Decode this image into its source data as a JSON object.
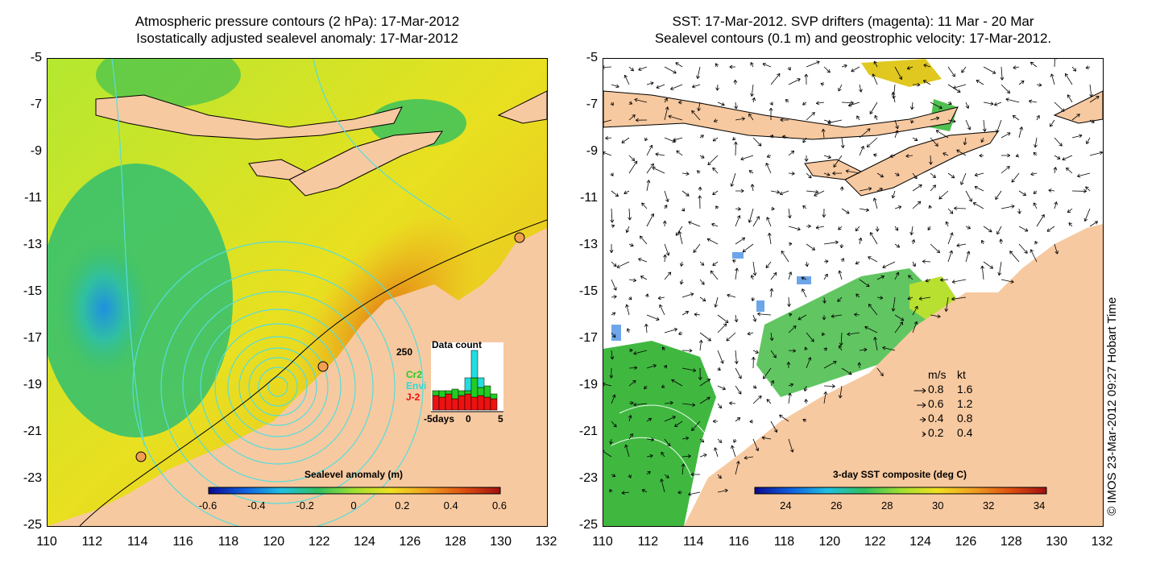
{
  "left_panel": {
    "title_line1": "Atmospheric pressure contours (2 hPa): 17-Mar-2012",
    "title_line2": "Isostatically adjusted sealevel anomaly: 17-Mar-2012",
    "colorbar": {
      "title": "Sealevel anomaly (m)",
      "ticks": [
        "-0.6",
        "-0.4",
        "-0.2",
        "0",
        "0.2",
        "0.4",
        "0.6"
      ],
      "min": -0.6,
      "max": 0.6
    },
    "data_count": {
      "title": "Data count",
      "ymax_label": "250",
      "xlabel_left": "-5days",
      "xlabel_mid": "0",
      "xlabel_right": "5",
      "series": [
        {
          "name": "Cr2",
          "color": "#22cc22"
        },
        {
          "name": "Envi",
          "color": "#22dddd"
        },
        {
          "name": "J-2",
          "color": "#ee1111"
        }
      ]
    }
  },
  "right_panel": {
    "title_line1": "SST: 17-Mar-2012. SVP drifters (magenta): 11 Mar - 20 Mar",
    "title_line2": "Sealevel contours (0.1 m) and geostrophic velocity: 17-Mar-2012.",
    "colorbar": {
      "title": "3-day SST composite (deg C)",
      "ticks": [
        "24",
        "26",
        "28",
        "30",
        "32",
        "34"
      ],
      "min": 22.75,
      "max": 34.25
    },
    "speed_legend": {
      "header_ms": "m/s",
      "header_kt": "kt",
      "rows": [
        {
          "ms": "0.8",
          "kt": "1.6"
        },
        {
          "ms": "0.6",
          "kt": "1.2"
        },
        {
          "ms": "0.4",
          "kt": "0.8"
        },
        {
          "ms": "0.2",
          "kt": "0.4"
        }
      ]
    }
  },
  "axes": {
    "y_ticks": [
      "-5",
      "-7",
      "-9",
      "-11",
      "-13",
      "-15",
      "-17",
      "-19",
      "-21",
      "-23",
      "-25"
    ],
    "x_ticks": [
      "110",
      "112",
      "114",
      "116",
      "118",
      "120",
      "122",
      "124",
      "126",
      "128",
      "130",
      "132"
    ],
    "lon_range": [
      110,
      132
    ],
    "lat_range": [
      -25,
      -5
    ]
  },
  "credit": "© IMOS 23-Mar-2012 09:27 Hobart Time",
  "colors": {
    "land": "#f7c9a0",
    "contour": "#55dddd",
    "drifter": "#ff00ff"
  }
}
